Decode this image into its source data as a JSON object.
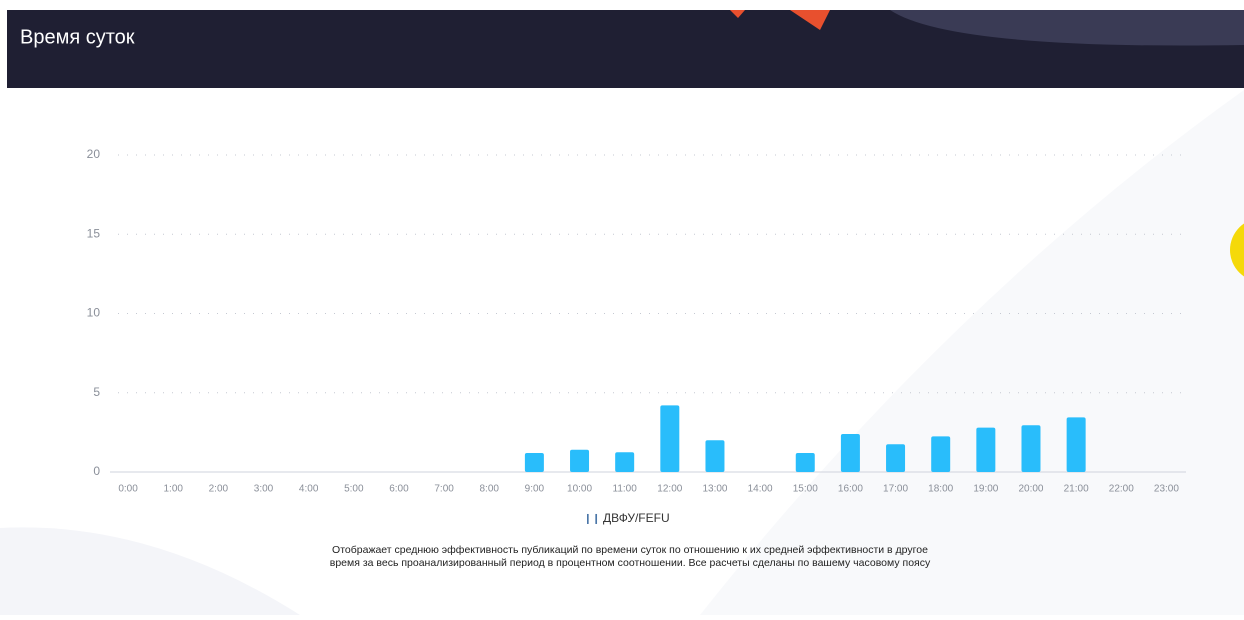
{
  "header": {
    "title": "Время суток"
  },
  "chart_data": {
    "type": "bar",
    "categories": [
      "0:00",
      "1:00",
      "2:00",
      "3:00",
      "4:00",
      "5:00",
      "6:00",
      "7:00",
      "8:00",
      "9:00",
      "10:00",
      "11:00",
      "12:00",
      "13:00",
      "14:00",
      "15:00",
      "16:00",
      "17:00",
      "18:00",
      "19:00",
      "20:00",
      "21:00",
      "22:00",
      "23:00"
    ],
    "series": [
      {
        "name": "ДВФУ/FEFU",
        "color": "#29bdfb",
        "values": [
          0,
          0,
          0,
          0,
          0,
          0,
          0,
          0,
          0,
          1.2,
          1.4,
          1.25,
          4.2,
          2.0,
          0,
          1.2,
          2.4,
          1.75,
          2.25,
          2.8,
          2.95,
          3.45,
          0,
          0
        ]
      }
    ],
    "ylim": [
      0,
      20
    ],
    "yticks": [
      0,
      5,
      10,
      15,
      20
    ],
    "grid": true
  },
  "caption": [
    "Отображает среднюю эффективность публикаций по времени суток по отношению к их средней эффективности в другое",
    "время за весь проанализированный период в процентном соотношении. Все расчеты сделаны по вашему часовому поясу"
  ]
}
